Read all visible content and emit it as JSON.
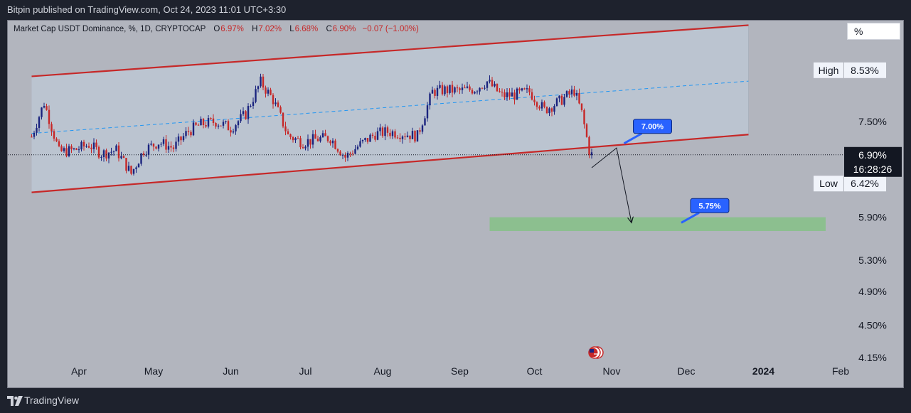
{
  "header": {
    "publisher": "Bitpin published on TradingView.com, Oct 24, 2023 11:01 UTC+3:30"
  },
  "symbol": {
    "name": "Market Cap USDT Dominance, %, 1D, CRYPTOCAP",
    "o_label": "O",
    "o_value": "6.97%",
    "h_label": "H",
    "h_value": "7.02%",
    "l_label": "L",
    "l_value": "6.68%",
    "c_label": "C",
    "c_value": "6.90%",
    "change": "−0.07 (−1.00%)"
  },
  "scale_mode": "%",
  "footer": {
    "brand": "TradingView"
  },
  "colors": {
    "background": "#b2b5be",
    "channel_line": "#c62828",
    "channel_fill": "#bcc7d3",
    "midline": "#2196f3",
    "candle_up": "#1a237e",
    "candle_down": "#c62828",
    "target_zone": "#8cbf8f",
    "callout": "#2962ff"
  },
  "chart_data": {
    "type": "candlestick",
    "x_axis_labels": [
      "Apr",
      "May",
      "Jun",
      "Jul",
      "Aug",
      "Sep",
      "Oct",
      "Nov",
      "Dec",
      "2024",
      "Feb"
    ],
    "y_axis": {
      "scale": "log",
      "ticks": [
        "8.53%",
        "7.50%",
        "5.90%",
        "5.30%",
        "4.90%",
        "4.50%",
        "4.15%"
      ],
      "range": [
        4.0,
        10.0
      ]
    },
    "high_label": {
      "label": "High",
      "value": "8.53%",
      "price": 8.53
    },
    "low_label": {
      "label": "Low",
      "value": "6.42%",
      "price": 6.42
    },
    "current": {
      "value": "6.90%",
      "countdown": "16:28:26",
      "price": 6.9
    },
    "channel": {
      "upper": [
        [
          "2023-03-13",
          8.4
        ],
        [
          "2023-12-26",
          9.55
        ]
      ],
      "lower": [
        [
          "2023-03-13",
          6.28
        ],
        [
          "2023-12-26",
          7.26
        ]
      ],
      "mid": [
        [
          "2023-03-13",
          7.28
        ],
        [
          "2023-12-26",
          8.3
        ]
      ]
    },
    "target_zone": {
      "from": "2023-09-13",
      "to": "2024-01-26",
      "low": 5.7,
      "high": 5.9
    },
    "annotations": [
      {
        "text": "7.00%",
        "date": "2023-11-06",
        "price": 7.1
      },
      {
        "text": "5.75%",
        "date": "2023-11-29",
        "price": 5.82
      }
    ],
    "projection_path": [
      [
        "2023-10-24",
        6.68
      ],
      [
        "2023-11-03",
        7.02
      ],
      [
        "2023-11-09",
        5.82
      ]
    ],
    "closes": [
      [
        "2023-03-13",
        7.22
      ],
      [
        "2023-03-18",
        7.86
      ],
      [
        "2023-03-24",
        6.95
      ],
      [
        "2023-03-30",
        6.98
      ],
      [
        "2023-04-05",
        7.08
      ],
      [
        "2023-04-10",
        6.92
      ],
      [
        "2023-04-16",
        6.98
      ],
      [
        "2023-04-22",
        6.58
      ],
      [
        "2023-04-27",
        6.98
      ],
      [
        "2023-05-03",
        7.12
      ],
      [
        "2023-05-09",
        7.02
      ],
      [
        "2023-05-15",
        7.32
      ],
      [
        "2023-05-20",
        7.45
      ],
      [
        "2023-05-26",
        7.5
      ],
      [
        "2023-06-01",
        7.38
      ],
      [
        "2023-06-07",
        7.64
      ],
      [
        "2023-06-13",
        8.28
      ],
      [
        "2023-06-18",
        7.92
      ],
      [
        "2023-06-24",
        7.24
      ],
      [
        "2023-06-30",
        7.12
      ],
      [
        "2023-07-06",
        7.18
      ],
      [
        "2023-07-11",
        7.2
      ],
      [
        "2023-07-17",
        6.86
      ],
      [
        "2023-07-23",
        7.08
      ],
      [
        "2023-07-29",
        7.27
      ],
      [
        "2023-08-03",
        7.31
      ],
      [
        "2023-08-09",
        7.28
      ],
      [
        "2023-08-15",
        7.23
      ],
      [
        "2023-08-21",
        8.08
      ],
      [
        "2023-08-26",
        8.12
      ],
      [
        "2023-09-01",
        8.1
      ],
      [
        "2023-09-07",
        8.14
      ],
      [
        "2023-09-12",
        8.29
      ],
      [
        "2023-09-18",
        8.0
      ],
      [
        "2023-09-23",
        8.02
      ],
      [
        "2023-09-29",
        8.08
      ],
      [
        "2023-10-05",
        7.72
      ],
      [
        "2023-10-11",
        7.89
      ],
      [
        "2023-10-17",
        8.1
      ],
      [
        "2023-10-20",
        7.66
      ],
      [
        "2023-10-23",
        6.97
      ],
      [
        "2023-10-24",
        6.9
      ]
    ]
  }
}
